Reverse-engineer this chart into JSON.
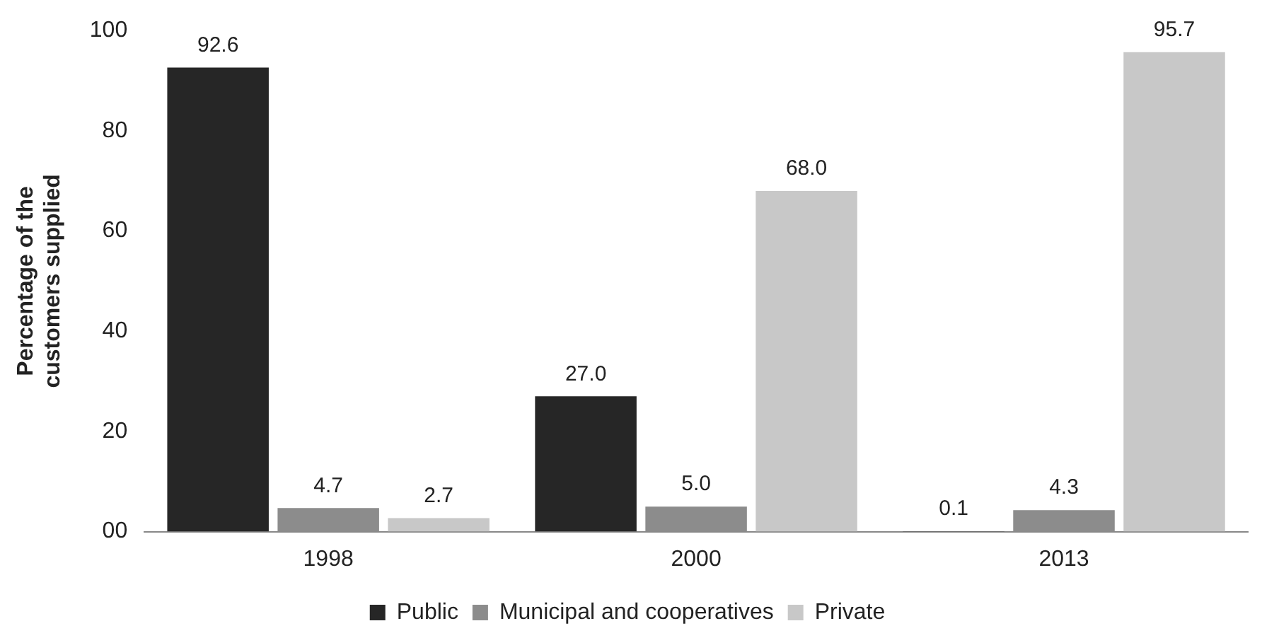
{
  "chart_data": {
    "type": "bar",
    "ylabel": "Percentage of the customers supplied",
    "categories": [
      "1998",
      "2000",
      "2013"
    ],
    "series": [
      {
        "name": "Public",
        "color": "#262626",
        "values": [
          92.6,
          27.0,
          0.1
        ],
        "value_labels": [
          "92.6",
          "27.0",
          "0.1"
        ]
      },
      {
        "name": "Municipal and cooperatives",
        "color": "#8c8c8c",
        "values": [
          4.7,
          5.0,
          4.3
        ],
        "value_labels": [
          "4.7",
          "5.0",
          "4.3"
        ]
      },
      {
        "name": "Private",
        "color": "#c8c8c8",
        "values": [
          2.7,
          68.0,
          95.7
        ],
        "value_labels": [
          "2.7",
          "68.0",
          "95.7"
        ]
      }
    ],
    "ylim": [
      0,
      100
    ],
    "yticks": [
      {
        "value": 0,
        "label": "00"
      },
      20,
      40,
      60,
      80,
      100
    ],
    "grid": false,
    "legend": "bottom"
  }
}
